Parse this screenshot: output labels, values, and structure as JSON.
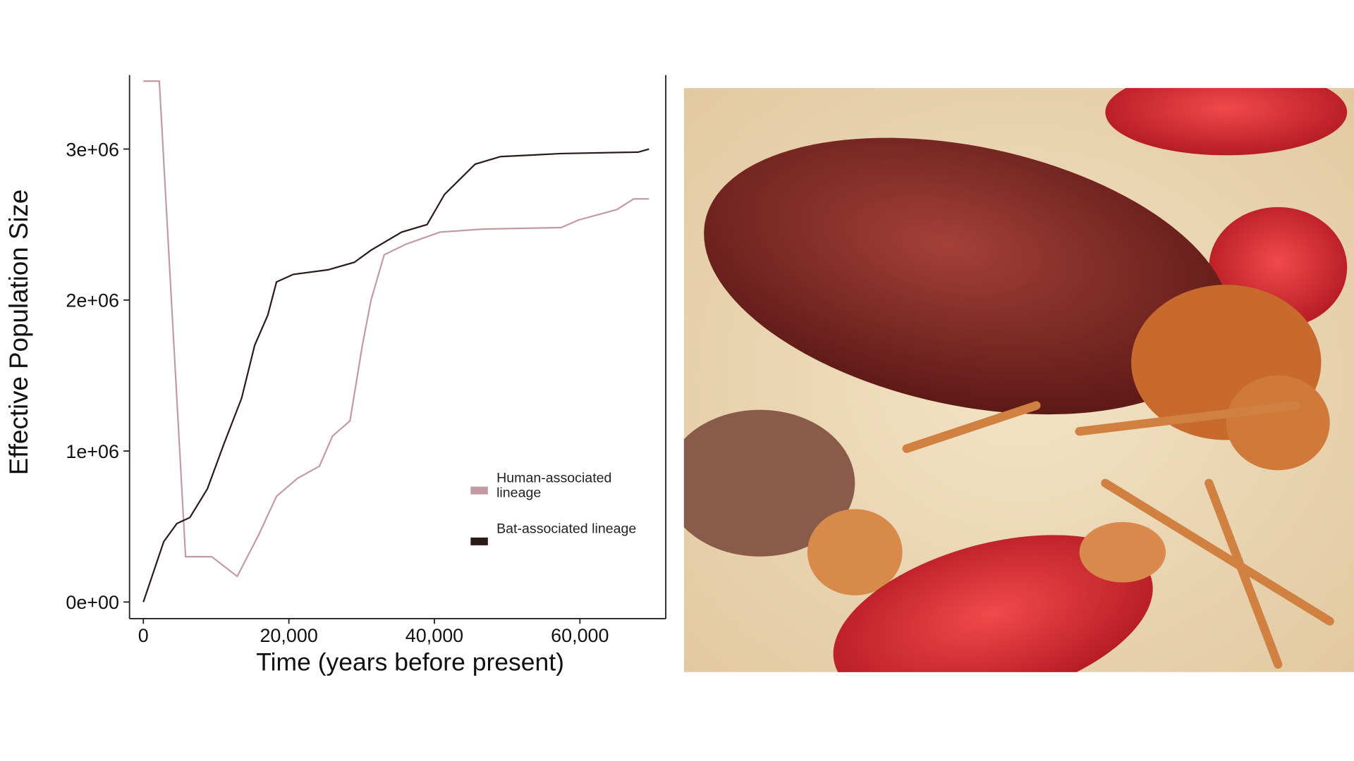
{
  "chart_data": {
    "type": "line",
    "x_label": "Time (years before present)",
    "y_label": "Effective Population Size",
    "xlim": [
      -1900,
      71800
    ],
    "ylim": [
      -110000,
      3490000
    ],
    "xticks": [
      0,
      {
        "value": 20000,
        "label": "20,000"
      },
      {
        "value": 40000,
        "label": "40,000"
      },
      {
        "value": 60000,
        "label": "60,000"
      }
    ],
    "yticks": [
      {
        "value": 0,
        "label": "0e+00"
      },
      {
        "value": 1000000,
        "label": "1e+06"
      },
      {
        "value": 2000000,
        "label": "2e+06"
      },
      {
        "value": 3000000,
        "label": "3e+06"
      }
    ],
    "series": [
      {
        "name": "Human-associated lineage",
        "color": "#c49aa2",
        "x": [
          0,
          2200,
          5800,
          9400,
          12900,
          15900,
          18300,
          21200,
          24200,
          26000,
          28400,
          30100,
          31300,
          33100,
          36100,
          40800,
          46700,
          57400,
          59800,
          65100,
          67400,
          69500
        ],
        "values": [
          3450000,
          3450000,
          300000,
          300000,
          170000,
          450000,
          700000,
          820000,
          900000,
          1100000,
          1200000,
          1700000,
          2000000,
          2300000,
          2370000,
          2450000,
          2470000,
          2480000,
          2530000,
          2600000,
          2670000,
          2670000
        ]
      },
      {
        "name": "Bat-associated lineage",
        "color": "#2b1a1a",
        "x": [
          0,
          2800,
          4600,
          6400,
          8800,
          11100,
          13500,
          15300,
          17100,
          18300,
          20600,
          25400,
          29000,
          31300,
          35500,
          39000,
          41400,
          45600,
          49100,
          57400,
          68000,
          69500
        ],
        "values": [
          0,
          400000,
          520000,
          560000,
          750000,
          1050000,
          1350000,
          1700000,
          1900000,
          2120000,
          2170000,
          2200000,
          2250000,
          2330000,
          2450000,
          2500000,
          2700000,
          2900000,
          2950000,
          2970000,
          2980000,
          3000000
        ]
      }
    ]
  }
}
